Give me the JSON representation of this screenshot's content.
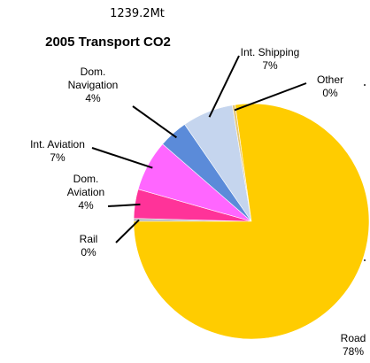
{
  "header": {
    "total": "1239.2Mt"
  },
  "chart_data": {
    "type": "pie",
    "title": "2005 Transport CO2",
    "start_angle_deg": 180,
    "direction": "clockwise",
    "slices": [
      {
        "label_lines": [
          "Rail"
        ],
        "pct_label": "0%",
        "value": 0.4,
        "color": "#B3B3B3"
      },
      {
        "label_lines": [
          "Dom.",
          "Aviation"
        ],
        "pct_label": "4%",
        "value": 4,
        "color": "#FF3399"
      },
      {
        "label_lines": [
          "Int. Aviation"
        ],
        "pct_label": "7%",
        "value": 7,
        "color": "#FF66FF"
      },
      {
        "label_lines": [
          "Dom.",
          "Navigation"
        ],
        "pct_label": "4%",
        "value": 4,
        "color": "#5B8BD9"
      },
      {
        "label_lines": [
          "Int. Shipping"
        ],
        "pct_label": "7%",
        "value": 7,
        "color": "#C5D5EE"
      },
      {
        "label_lines": [
          "Other"
        ],
        "pct_label": "0%",
        "value": 0.4,
        "color": "#E6C878"
      },
      {
        "label_lines": [
          "Road"
        ],
        "pct_label": "78%",
        "value": 77.2,
        "color": "#FFCC00"
      }
    ]
  }
}
